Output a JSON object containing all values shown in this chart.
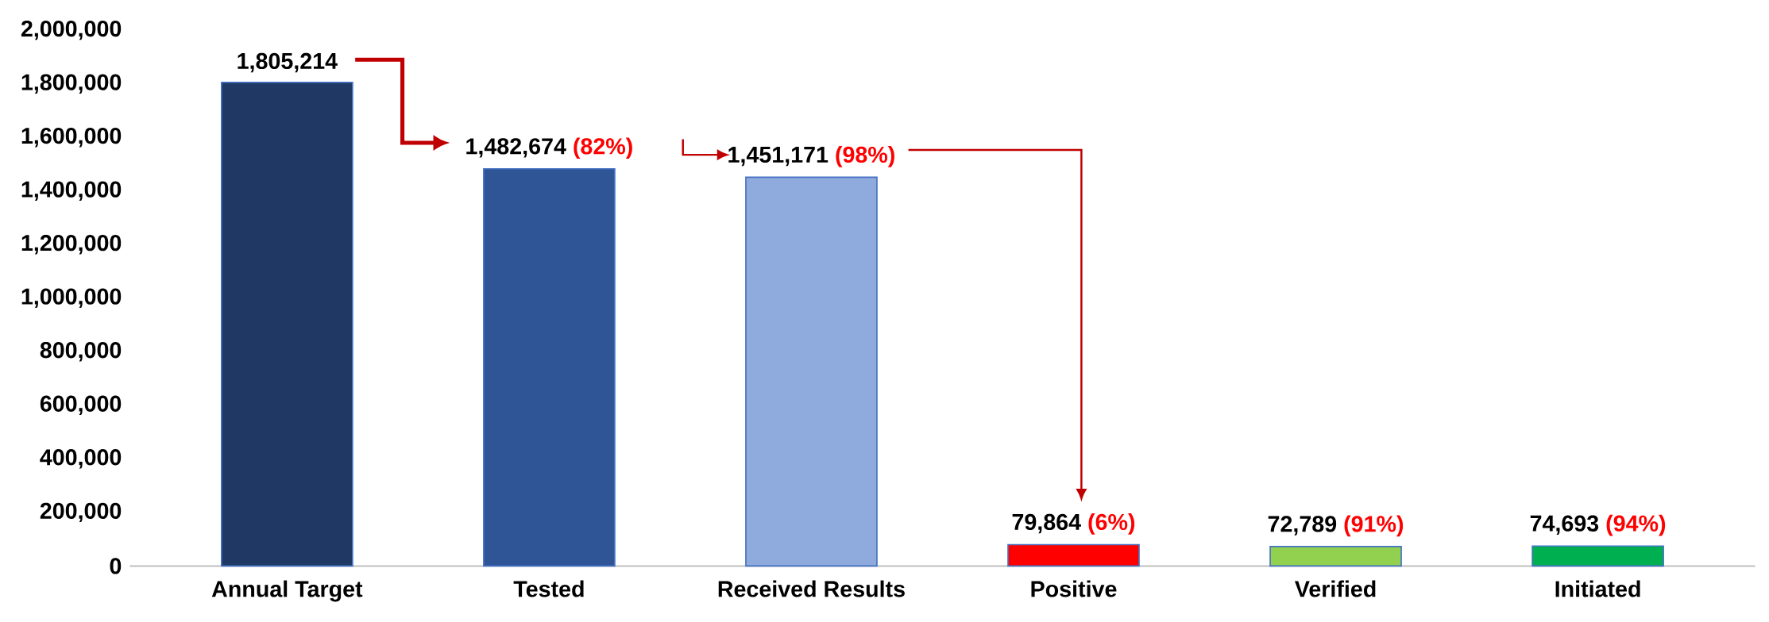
{
  "chart_data": {
    "type": "bar",
    "categories": [
      "Annual Target",
      "Tested",
      "Received Results",
      "Positive",
      "Verified",
      "Initiated"
    ],
    "values": [
      1805214,
      1482674,
      1451171,
      79864,
      72789,
      74693
    ],
    "colors": [
      "#203864",
      "#2f5597",
      "#8faadc",
      "#ff0000",
      "#92d050",
      "#00b050"
    ],
    "value_labels": [
      "1,805,214",
      "1,482,674",
      "1,451,171",
      "79,864",
      "72,789",
      "74,693"
    ],
    "annotations": [
      {
        "text": "(82%)",
        "x": "Tested",
        "y": 1482674
      },
      {
        "text": "(98%)",
        "x": "Received Results",
        "y": 1451171
      },
      {
        "text": "(6%)",
        "x": "Positive",
        "y": 79864
      },
      {
        "text": "(91%)",
        "x": "Verified",
        "y": 72789
      },
      {
        "text": "(94%)",
        "x": "Initiated",
        "y": 74693
      }
    ],
    "ylim": [
      0,
      2000000
    ],
    "yticks": [
      {
        "value": 0,
        "label": "0"
      },
      {
        "value": 200000,
        "label": "200,000"
      },
      {
        "value": 400000,
        "label": "400,000"
      },
      {
        "value": 600000,
        "label": "600,000"
      },
      {
        "value": 800000,
        "label": "800,000"
      },
      {
        "value": 1000000,
        "label": "1,000,000"
      },
      {
        "value": 1200000,
        "label": "1,200,000"
      },
      {
        "value": 1400000,
        "label": "1,400,000"
      },
      {
        "value": 1600000,
        "label": "1,600,000"
      },
      {
        "value": 1800000,
        "label": "1,800,000"
      },
      {
        "value": 2000000,
        "label": "2,000,000"
      }
    ],
    "grid": false
  }
}
